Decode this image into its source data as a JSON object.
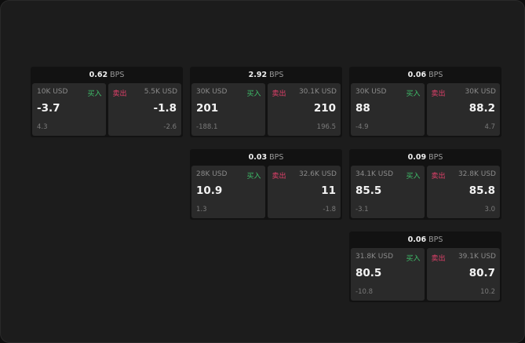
{
  "cards": [
    {
      "spread": "0.62",
      "unit": "BPS",
      "bid": {
        "size": "10K USD",
        "side": "买入",
        "price": "-3.7",
        "change": "4.3"
      },
      "ask": {
        "size": "5.5K USD",
        "side": "卖出",
        "price": "-1.8",
        "change": "-2.6"
      }
    },
    {
      "spread": "2.92",
      "unit": "BPS",
      "bid": {
        "size": "30K USD",
        "side": "买入",
        "price": "201",
        "change": "-188.1"
      },
      "ask": {
        "size": "30.1K USD",
        "side": "卖出",
        "price": "210",
        "change": "196.5"
      }
    },
    {
      "spread": "0.06",
      "unit": "BPS",
      "bid": {
        "size": "30K USD",
        "side": "买入",
        "price": "88",
        "change": "-4.9"
      },
      "ask": {
        "size": "30K USD",
        "side": "卖出",
        "price": "88.2",
        "change": "4.7"
      }
    },
    {
      "spread": "0.03",
      "unit": "BPS",
      "bid": {
        "size": "28K USD",
        "side": "买入",
        "price": "10.9",
        "change": "1.3"
      },
      "ask": {
        "size": "32.6K USD",
        "side": "卖出",
        "price": "11",
        "change": "-1.8"
      }
    },
    {
      "spread": "0.09",
      "unit": "BPS",
      "bid": {
        "size": "34.1K USD",
        "side": "买入",
        "price": "85.5",
        "change": "-3.1"
      },
      "ask": {
        "size": "32.8K USD",
        "side": "卖出",
        "price": "85.8",
        "change": "3.0"
      }
    },
    {
      "spread": "0.06",
      "unit": "BPS",
      "bid": {
        "size": "31.8K USD",
        "side": "买入",
        "price": "80.5",
        "change": "-10.8"
      },
      "ask": {
        "size": "39.1K USD",
        "side": "卖出",
        "price": "80.7",
        "change": "10.2"
      }
    }
  ],
  "colors": {
    "buy": "#3fbf6a",
    "sell": "#e0406a"
  }
}
